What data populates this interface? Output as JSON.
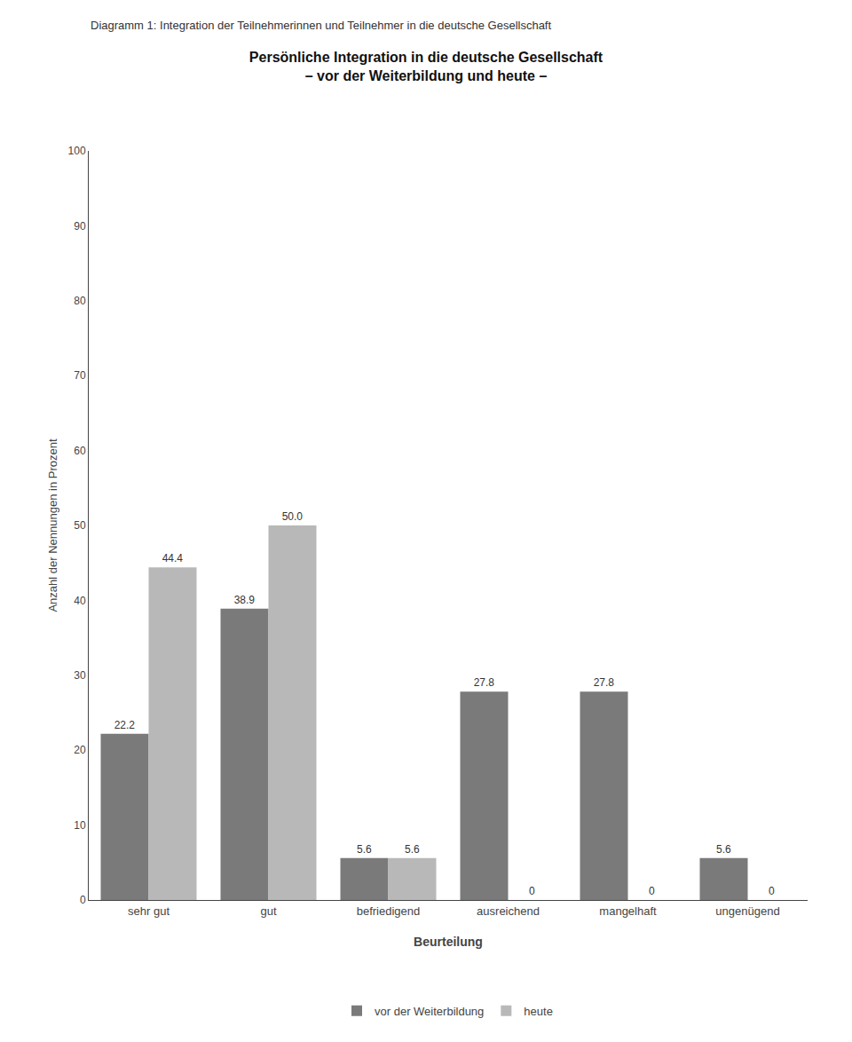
{
  "chart_data": {
    "type": "bar",
    "title": "Persönliche Integration in die deutsche Gesellschaft",
    "subtitle": "– vor der Weiterbildung und heute –",
    "annotations": [
      "Diagramm 1: Integration der Teilnehmerinnen und Teilnehmer in die deutsche Gesellschaft"
    ],
    "categories": [
      "sehr gut",
      "gut",
      "befriedigend",
      "ausreichend",
      "mangelhaft",
      "ungenügend"
    ],
    "series": [
      {
        "name": "vor der Weiterbildung",
        "color": "#7a7a7a",
        "values": [
          22.2,
          38.9,
          5.6,
          27.8,
          27.8,
          5.6
        ],
        "value_labels": [
          "22.2",
          "38.9",
          "5.6",
          "27.8",
          "27.8",
          "5.6"
        ]
      },
      {
        "name": "heute",
        "color": "#b8b8b8",
        "values": [
          44.4,
          50.0,
          5.6,
          0.0,
          0.0,
          0.0
        ],
        "value_labels": [
          "44.4",
          "50.0",
          "5.6",
          "0",
          "0",
          "0"
        ]
      }
    ],
    "xlabel": "Beurteilung",
    "ylabel": "Anzahl der Nennungen in Prozent",
    "ylim": [
      0,
      100
    ],
    "yticks": [
      0,
      10,
      20,
      30,
      40,
      50,
      60,
      70,
      80,
      90,
      100
    ],
    "grid": false,
    "legend": "bottom",
    "data_labels": true
  }
}
